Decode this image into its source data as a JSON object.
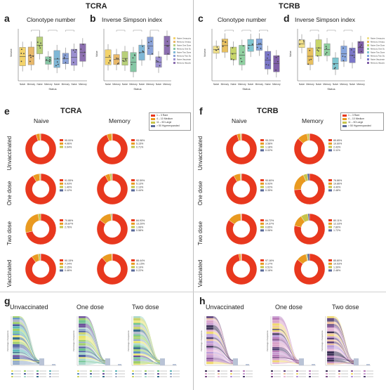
{
  "headers": {
    "left": "TCRA",
    "right": "TCRB"
  },
  "panels": {
    "a": {
      "letter": "a",
      "title": "Clonotype number"
    },
    "b": {
      "letter": "b",
      "title": "Inverse Simpson index"
    },
    "c": {
      "letter": "c",
      "title": "Clonotype number"
    },
    "d": {
      "letter": "d",
      "title": "Inverse Simpson index"
    },
    "e": {
      "letter": "e",
      "title": "TCRA"
    },
    "f": {
      "letter": "f",
      "title": "TCRB"
    },
    "g": {
      "letter": "g"
    },
    "h": {
      "letter": "h"
    }
  },
  "box_axis": {
    "ylabel_count": "Volume",
    "ylabel_index": "Value",
    "xlabel": "Status"
  },
  "box_x_ticks": [
    "Naive",
    "Memory",
    "Naive",
    "Memory",
    "Naive",
    "Memory",
    "Naive",
    "Memory"
  ],
  "box_legend": [
    "Naive Unvaccinated",
    "Memory Unvaccinated",
    "Naive One Dose",
    "Memory One Dose",
    "Naive Two Dose",
    "Memory Two Dose",
    "Naive Vaccinated",
    "Memory Vaccinated"
  ],
  "donut_columns": [
    "Naive",
    "Memory"
  ],
  "donut_rows": [
    "Unvaccinated",
    "One dose",
    "Two dose",
    "Vaccinated"
  ],
  "donut_legend": [
    {
      "range": "1 – 3",
      "label": "Rare"
    },
    {
      "range": "4 – 10",
      "label": "Medium"
    },
    {
      "range": "11 – 50",
      "label": "Large"
    },
    {
      "range": "> 50",
      "label": "Hyperexpanded"
    }
  ],
  "donut_pcts": {
    "e": [
      [
        [
          "95.00%",
          "4.06%",
          "0.94%"
        ],
        [
          "93.98%",
          "5.15%",
          "0.71%"
        ]
      ],
      [
        [
          "91.55%",
          "6.93%",
          "1.40%",
          "0.12%"
        ],
        [
          "92.59%",
          "5.13%",
          "2.13%",
          "0.44%"
        ]
      ],
      [
        [
          "70.86%",
          "25.87%",
          "2.76%"
        ],
        [
          "84.93%",
          "13.29%",
          "1.06%",
          "0.58%"
        ]
      ],
      [
        [
          "90.15%",
          "7.24%",
          "2.15%",
          "0.46%"
        ],
        [
          "88.44%",
          "11.15%",
          "0.19%",
          "0.22%"
        ]
      ]
    ],
    "f": [
      [
        [
          "95.20%",
          "3.58%",
          "1.18%",
          "0.02%"
        ],
        [
          "85.85%",
          "10.60%",
          "2.43%",
          "0.11%"
        ]
      ],
      [
        [
          "90.60%",
          "6.93%",
          "1.02%",
          "0.35%"
        ],
        [
          "76.86%",
          "19.86%",
          "4.40%",
          "2.48%"
        ]
      ],
      [
        [
          "84.72%",
          "14.37%",
          "0.65%",
          "0.06%"
        ],
        [
          "80.11%",
          "12.33%",
          "7.80%",
          "1.72%"
        ]
      ],
      [
        [
          "97.16%",
          "2.17%",
          "0.51%",
          "0.16%"
        ],
        [
          "85.80%",
          "10.53%",
          "1.39%",
          "2.48%"
        ]
      ]
    ]
  },
  "alluvial_titles": [
    "Unvaccinated",
    "One dose",
    "Two dose"
  ],
  "alluvial_y_label": "Percentage of sequences",
  "colors": {
    "rare": "#e8381e",
    "medium": "#e99a20",
    "large": "#c7c44a",
    "hyper": "#5a6a9a",
    "divider": "#bdbdbd"
  }
}
